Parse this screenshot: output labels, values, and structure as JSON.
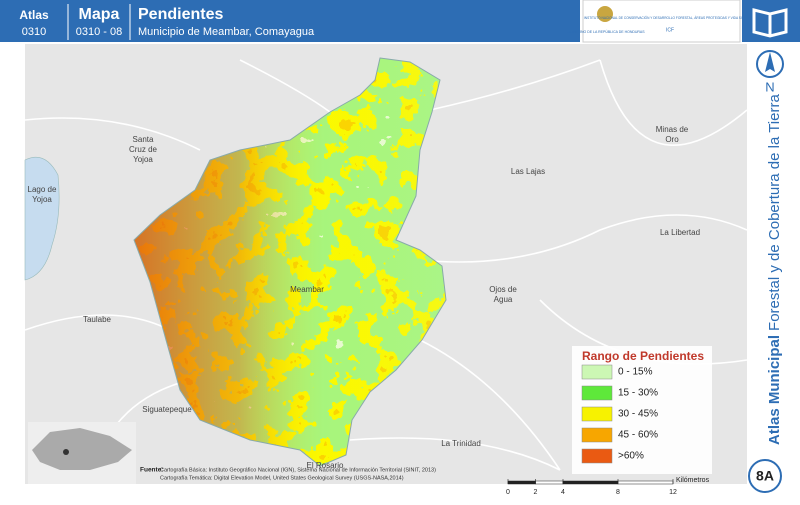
{
  "header": {
    "atlas_label": "Atlas",
    "atlas_code": "0310",
    "map_label": "Mapa",
    "map_code": "0310 - 08",
    "title": "Pendientes",
    "subtitle": "Municipio de Meambar, Comayagua"
  },
  "logos": {
    "government": "GOBIERNO DE LA REPÚBLICA DE HONDURAS",
    "institute": "INSTITUTO NACIONAL DE CONSERVACIÓN Y DESARROLLO FORESTAL, ÁREAS PROTEGIDAS Y VIDA SILVESTRE",
    "institute_short": "ICF"
  },
  "north": "N",
  "side_title": {
    "bold": "Atlas Municipal",
    "rest": "Forestal y de Cobertura de la Tierra"
  },
  "places": [
    "Santa Cruz de Yojoa",
    "Minas de Oro",
    "Las Lajas",
    "Lago de Yojoa",
    "La Libertad",
    "Meambar",
    "Ojos de Agua",
    "Taulabe",
    "Siguatepeque",
    "La Trinidad",
    "El Rosario"
  ],
  "legend": {
    "title": "Rango de Pendientes",
    "items": [
      {
        "label": "0 - 15%",
        "color": "#ccf7b4"
      },
      {
        "label": "15 - 30%",
        "color": "#5ee83a"
      },
      {
        "label": "30 - 45%",
        "color": "#f7f200"
      },
      {
        "label": "45 - 60%",
        "color": "#f7a600"
      },
      {
        "label": ">60%",
        "color": "#ea5a12"
      }
    ]
  },
  "scale": {
    "ticks": [
      0,
      2,
      4,
      8,
      12
    ],
    "unit": "Kilómetros"
  },
  "source": {
    "label": "Fuente:",
    "lines": [
      "Cartografía Básica: Instituto Geográfico Nacional (IGN), Sistema Nacional de Información Territorial (SINIT, 2013)",
      "Cartografía Temática: Digital Elevation Model, United States Geological Survey (USGS-NASA,2014)"
    ]
  },
  "page_badge": "8A"
}
